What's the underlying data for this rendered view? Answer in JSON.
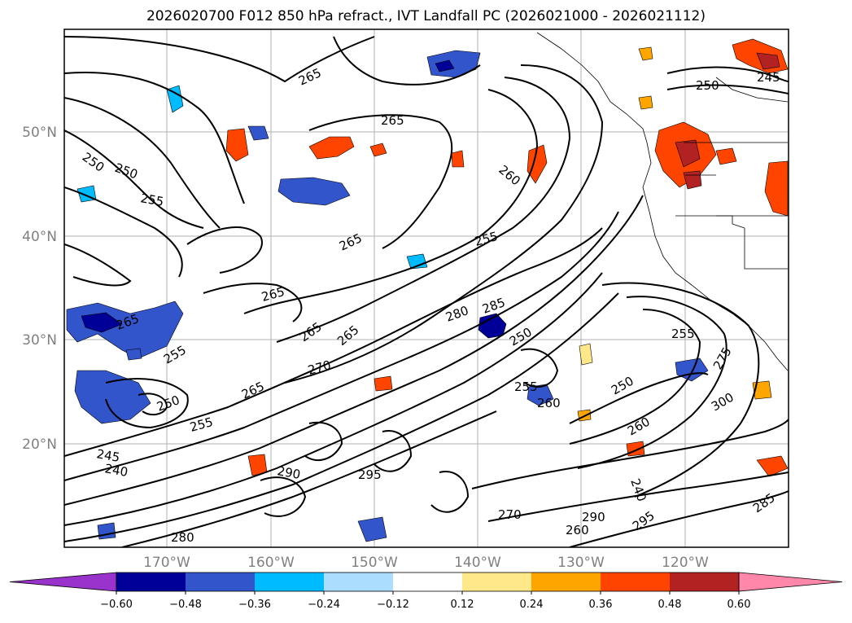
{
  "title": "2026020700 F012 850 hPa refract., IVT Landfall PC (2026021000 - 2026021112)",
  "map": {
    "lat_labels": [
      "50°N",
      "40°N",
      "30°N",
      "20°N"
    ],
    "lon_labels": [
      "170°W",
      "160°W",
      "150°W",
      "140°W",
      "130°W",
      "120°W"
    ],
    "contour_levels": [
      "240",
      "245",
      "250",
      "255",
      "260",
      "265",
      "270",
      "275",
      "280",
      "285",
      "290",
      "295",
      "300"
    ],
    "contour_labels": [
      "265",
      "265",
      "265",
      "265",
      "265",
      "265",
      "265",
      "260",
      "260",
      "255",
      "255",
      "255",
      "255",
      "250",
      "250",
      "250",
      "250",
      "250",
      "255",
      "270",
      "265",
      "280",
      "285",
      "250",
      "255",
      "260",
      "245",
      "240",
      "290",
      "295",
      "270",
      "260",
      "290",
      "295",
      "280",
      "285",
      "300",
      "275",
      "240",
      "245"
    ]
  },
  "colorbar": {
    "tick_labels": [
      "−0.60",
      "−0.48",
      "−0.36",
      "−0.24",
      "−0.12",
      "0.12",
      "0.24",
      "0.36",
      "0.48",
      "0.60"
    ],
    "colors": [
      "#9933cc",
      "#000099",
      "#3355cc",
      "#00bbff",
      "#aaddff",
      "#ffffff",
      "#ffe88a",
      "#ffa500",
      "#ff4400",
      "#b22222",
      "#ff88aa"
    ],
    "extend": "both"
  },
  "shading_colors": {
    "purple": "#9933cc",
    "navy": "#000099",
    "blue": "#3355cc",
    "cyan": "#00bbff",
    "lightblue": "#aaddff",
    "yellow": "#ffe88a",
    "orange": "#ffa500",
    "redorange": "#ff4400",
    "darkred": "#b22222"
  }
}
